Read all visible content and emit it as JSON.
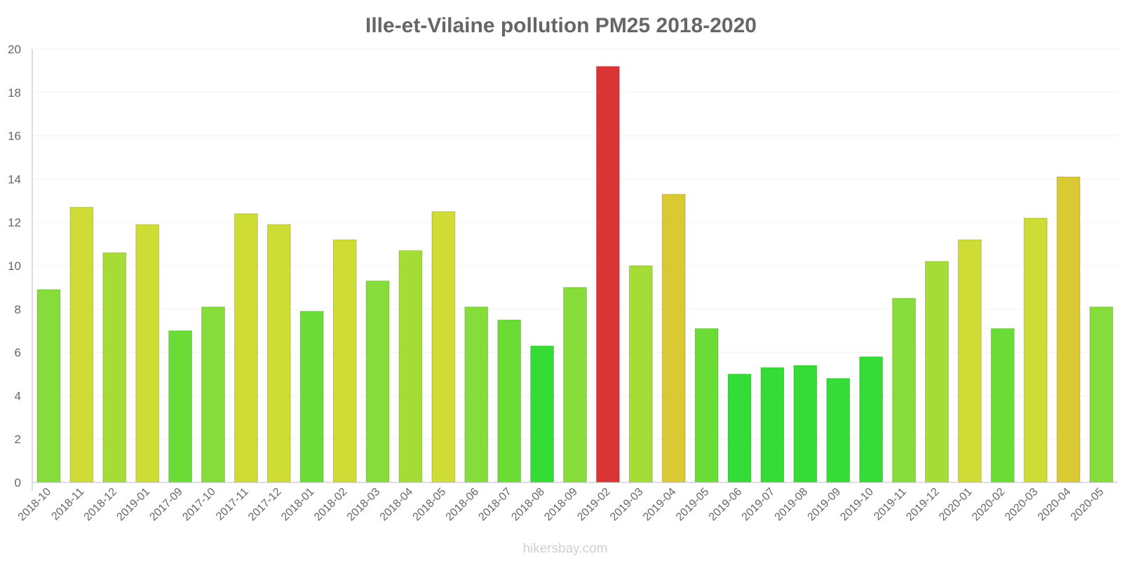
{
  "chart_data": {
    "type": "bar",
    "title": "Ille-et-Vilaine pollution PM25 2018-2020",
    "xlabel": "",
    "ylabel": "",
    "ylim": [
      0,
      20
    ],
    "yticks": [
      0,
      2,
      4,
      6,
      8,
      10,
      12,
      14,
      16,
      18,
      20
    ],
    "grid": true,
    "categories": [
      "2018-10",
      "2018-11",
      "2018-12",
      "2019-01",
      "2017-09",
      "2017-10",
      "2017-11",
      "2017-12",
      "2018-01",
      "2018-02",
      "2018-03",
      "2018-04",
      "2018-05",
      "2018-06",
      "2018-07",
      "2018-08",
      "2018-09",
      "2019-02",
      "2019-03",
      "2019-04",
      "2019-05",
      "2019-06",
      "2019-07",
      "2019-08",
      "2019-09",
      "2019-10",
      "2019-11",
      "2019-12",
      "2020-01",
      "2020-02",
      "2020-03",
      "2020-04",
      "2020-05"
    ],
    "values": [
      8.9,
      12.7,
      10.6,
      11.9,
      7.0,
      8.1,
      12.4,
      11.9,
      7.9,
      11.2,
      9.3,
      10.7,
      12.5,
      8.1,
      7.5,
      6.3,
      9.0,
      19.2,
      10.0,
      13.3,
      7.1,
      5.0,
      5.3,
      5.4,
      4.8,
      5.8,
      8.5,
      10.2,
      11.2,
      7.1,
      12.2,
      14.1,
      8.1
    ],
    "colors": [
      "#86dc3a",
      "#cfdc36",
      "#a6dc36",
      "#cfdc36",
      "#6bdc36",
      "#86dc3a",
      "#cfdc36",
      "#cfdc36",
      "#6bdc36",
      "#cfdc36",
      "#86dc3a",
      "#a6dc36",
      "#cfdc36",
      "#86dc3a",
      "#6bdc36",
      "#36dc36",
      "#86dc3a",
      "#db3434",
      "#a6dc36",
      "#dbc934",
      "#6bdc36",
      "#36dc36",
      "#36dc36",
      "#36dc36",
      "#36dc36",
      "#36dc36",
      "#86dc3a",
      "#a6dc36",
      "#cfdc36",
      "#6bdc36",
      "#cfdc36",
      "#dbc934",
      "#86dc3a"
    ]
  },
  "watermark": "hikersbay.com"
}
